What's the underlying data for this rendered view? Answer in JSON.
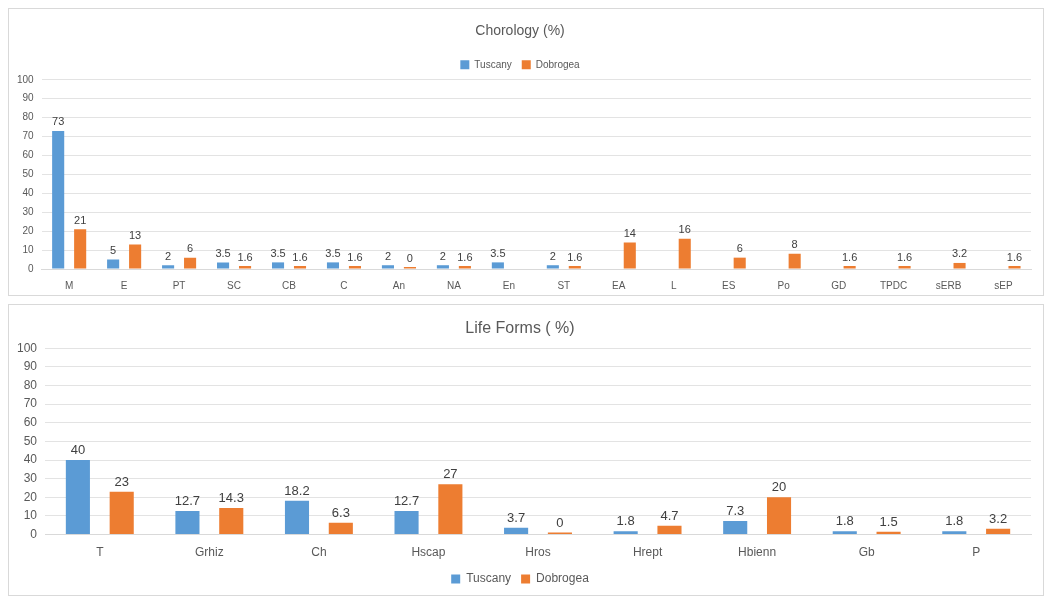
{
  "chart_data": [
    {
      "type": "bar",
      "title": "Chorology (%)",
      "categories": [
        "M",
        "E",
        "PT",
        "SC",
        "CB",
        "C",
        "An",
        "NA",
        "En",
        "ST",
        "EA",
        "L",
        "ES",
        "Po",
        "GD",
        "TPDC",
        "sERB",
        "sEP"
      ],
      "series": [
        {
          "name": "Tuscany",
          "color": "#5b9bd5",
          "values": [
            73,
            5,
            2,
            3.5,
            3.5,
            3.5,
            2,
            2,
            3.5,
            2,
            null,
            null,
            null,
            null,
            null,
            null,
            null,
            null
          ]
        },
        {
          "name": "Dobrogea",
          "color": "#ed7d31",
          "values": [
            21,
            13,
            6,
            1.6,
            1.6,
            1.6,
            0,
            1.6,
            null,
            1.6,
            14,
            16,
            6,
            8,
            1.6,
            1.6,
            3.2,
            1.6
          ]
        }
      ],
      "ylim": [
        0,
        100
      ],
      "yticks": [
        0,
        10,
        20,
        30,
        40,
        50,
        60,
        70,
        80,
        90,
        100
      ],
      "grid": "y",
      "legend": "top",
      "data_labels": true
    },
    {
      "type": "bar",
      "title": "Life Forms ( %)",
      "categories": [
        "T",
        "Grhiz",
        "Ch",
        "Hscap",
        "Hros",
        "Hrept",
        "Hbienn",
        "Gb",
        "P"
      ],
      "series": [
        {
          "name": "Tuscany",
          "color": "#5b9bd5",
          "values": [
            40,
            12.7,
            18.2,
            12.7,
            3.7,
            1.8,
            7.3,
            1.8,
            1.8
          ]
        },
        {
          "name": "Dobrogea",
          "color": "#ed7d31",
          "values": [
            23,
            14.3,
            6.3,
            27,
            0,
            4.7,
            20,
            1.5,
            3.2
          ]
        }
      ],
      "ylim": [
        0,
        100
      ],
      "yticks": [
        0,
        10,
        20,
        30,
        40,
        50,
        60,
        70,
        80,
        90,
        100
      ],
      "grid": "y",
      "legend": "bottom",
      "data_labels": true
    }
  ]
}
